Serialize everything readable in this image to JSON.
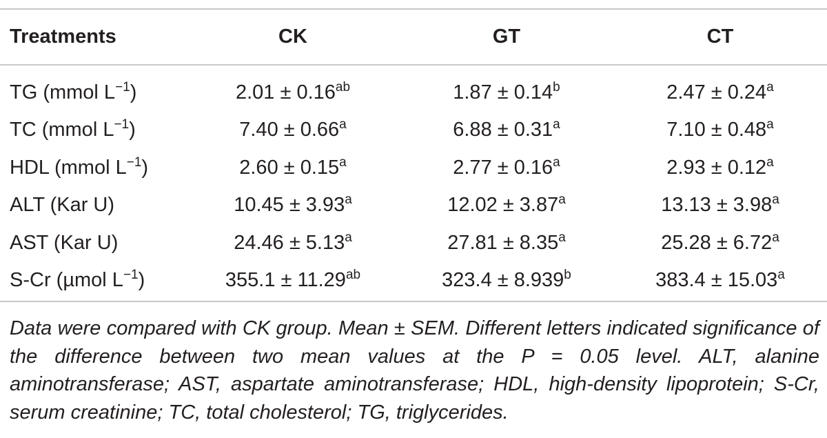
{
  "table": {
    "headers": [
      "Treatments",
      "CK",
      "GT",
      "CT"
    ],
    "rows": [
      {
        "label": "TG (mmol L",
        "label_sup": "−1",
        "label_end": ")",
        "cells": [
          {
            "value": "2.01 ± 0.16",
            "sig": "ab"
          },
          {
            "value": "1.87 ± 0.14",
            "sig": "b"
          },
          {
            "value": "2.47 ± 0.24",
            "sig": "a"
          }
        ]
      },
      {
        "label": "TC (mmol L",
        "label_sup": "−1",
        "label_end": ")",
        "cells": [
          {
            "value": "7.40 ± 0.66",
            "sig": "a"
          },
          {
            "value": "6.88 ± 0.31",
            "sig": "a"
          },
          {
            "value": "7.10 ± 0.48",
            "sig": "a"
          }
        ]
      },
      {
        "label": "HDL (mmol L",
        "label_sup": "−1",
        "label_end": ")",
        "cells": [
          {
            "value": "2.60 ± 0.15",
            "sig": "a"
          },
          {
            "value": "2.77 ± 0.16",
            "sig": "a"
          },
          {
            "value": "2.93 ± 0.12",
            "sig": "a"
          }
        ]
      },
      {
        "label": "ALT (Kar U)",
        "label_sup": "",
        "label_end": "",
        "cells": [
          {
            "value": "10.45 ± 3.93",
            "sig": "a"
          },
          {
            "value": "12.02 ± 3.87",
            "sig": "a"
          },
          {
            "value": "13.13 ± 3.98",
            "sig": "a"
          }
        ]
      },
      {
        "label": "AST (Kar U)",
        "label_sup": "",
        "label_end": "",
        "cells": [
          {
            "value": "24.46 ± 5.13",
            "sig": "a"
          },
          {
            "value": "27.81 ± 8.35",
            "sig": "a"
          },
          {
            "value": "25.28 ± 6.72",
            "sig": "a"
          }
        ]
      },
      {
        "label": "S-Cr (µmol L",
        "label_sup": "−1",
        "label_end": ")",
        "cells": [
          {
            "value": "355.1 ± 11.29",
            "sig": "ab"
          },
          {
            "value": "323.4 ± 8.939",
            "sig": "b"
          },
          {
            "value": "383.4 ± 15.03",
            "sig": "a"
          }
        ]
      }
    ]
  },
  "footnote": "Data were compared with CK group. Mean ± SEM. Different letters indicated significance of the difference between two mean values at the P = 0.05 level. ALT, alanine aminotransferase; AST, aspartate aminotransferase; HDL, high-density lipoprotein; S-Cr, serum creatinine; TC, total cholesterol; TG, triglycerides."
}
